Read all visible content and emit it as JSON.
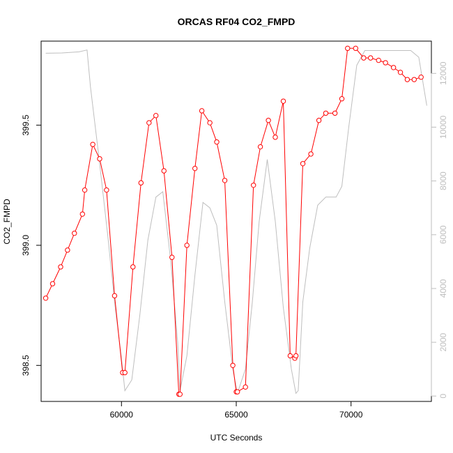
{
  "chart_data": {
    "type": "line",
    "title": "ORCAS RF04 CO2_FMPD",
    "xlabel": "UTC Seconds",
    "ylabel": "CO2_FMPD",
    "xlim": [
      56500,
      73500
    ],
    "ylim": [
      398.35,
      399.85
    ],
    "y2lim": [
      -200,
      13200
    ],
    "x_ticks": [
      60000,
      65000,
      70000
    ],
    "x_tick_labels": [
      "60000",
      "65000",
      "70000"
    ],
    "y_ticks": [
      398.5,
      399.0,
      399.5
    ],
    "y_tick_labels": [
      "398.5",
      "399.0",
      "399.5"
    ],
    "y2_ticks": [
      0,
      2000,
      4000,
      6000,
      8000,
      10000,
      12000
    ],
    "y2_tick_labels": [
      "0",
      "2000",
      "4000",
      "6000",
      "8000",
      "10000",
      "12000"
    ],
    "grid": false,
    "series": [
      {
        "axis": "left",
        "color": "#ff0000",
        "marker": "circle-open",
        "x": [
          56700,
          57000,
          57350,
          57650,
          57950,
          58300,
          58400,
          58750,
          59050,
          59350,
          59700,
          60050,
          60150,
          60500,
          60850,
          61200,
          61500,
          61850,
          62200,
          62500,
          62550,
          62850,
          63200,
          63500,
          63850,
          64150,
          64500,
          64850,
          65000,
          65050,
          65400,
          65750,
          66050,
          66400,
          66700,
          67050,
          67350,
          67550,
          67600,
          67900,
          68250,
          68600,
          68900,
          69300,
          69600,
          69850,
          70200,
          70550,
          70850,
          71200,
          71500,
          71850,
          72150,
          72450,
          72750,
          73050
        ],
        "y": [
          398.78,
          398.84,
          398.91,
          398.98,
          399.05,
          399.13,
          399.23,
          399.42,
          399.36,
          399.23,
          398.79,
          398.47,
          398.47,
          398.91,
          399.26,
          399.51,
          399.54,
          399.31,
          398.95,
          398.38,
          398.38,
          399.0,
          399.32,
          399.56,
          399.51,
          399.43,
          399.27,
          398.5,
          398.39,
          398.39,
          398.41,
          399.25,
          399.41,
          399.52,
          399.45,
          399.6,
          398.54,
          398.53,
          398.54,
          399.34,
          399.38,
          399.52,
          399.55,
          399.55,
          399.61,
          399.82,
          399.82,
          399.78,
          399.78,
          399.77,
          399.76,
          399.74,
          399.72,
          399.69,
          399.69,
          399.7
        ]
      },
      {
        "axis": "right",
        "color": "#bebebe",
        "marker": "none",
        "x": [
          56700,
          57400,
          58150,
          58500,
          58650,
          59000,
          59400,
          59700,
          60000,
          60150,
          60450,
          60800,
          61150,
          61500,
          61800,
          62150,
          62450,
          62550,
          62850,
          63200,
          63550,
          63850,
          64150,
          64500,
          64850,
          65050,
          65400,
          65700,
          66000,
          66350,
          66700,
          67050,
          67400,
          67600,
          67700,
          67900,
          68200,
          68550,
          68900,
          69350,
          69600,
          69900,
          70250,
          70600,
          71200,
          72000,
          72600,
          72950,
          73300
        ],
        "y": [
          12750,
          12760,
          12800,
          12870,
          11500,
          9000,
          6000,
          3500,
          1400,
          200,
          600,
          3000,
          5800,
          7400,
          7600,
          5000,
          2000,
          200,
          1500,
          4500,
          7200,
          7000,
          6350,
          3500,
          1000,
          100,
          1000,
          3500,
          6500,
          8800,
          6500,
          3300,
          1000,
          100,
          200,
          3500,
          5500,
          7100,
          7400,
          7400,
          7800,
          10000,
          12300,
          12850,
          12850,
          12850,
          12850,
          12600,
          10800
        ]
      }
    ]
  }
}
